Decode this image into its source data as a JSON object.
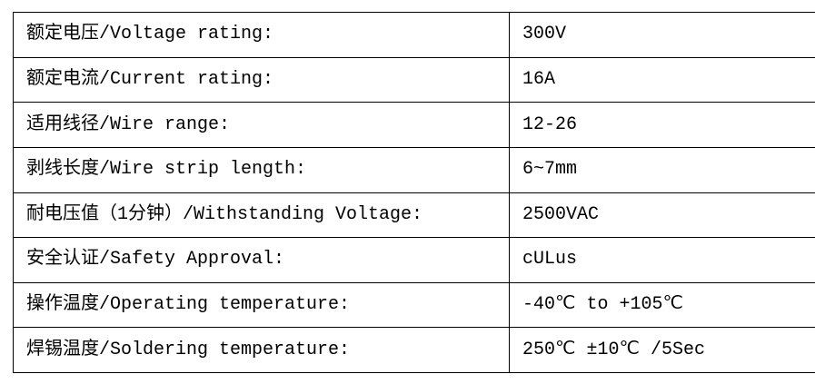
{
  "table": {
    "border_color": "#000000",
    "background_color": "#ffffff",
    "text_color": "#000000",
    "rows": [
      {
        "label": "额定电压/Voltage rating:",
        "value": "300V"
      },
      {
        "label": "额定电流/Current rating:",
        "value": "16A"
      },
      {
        "label": "适用线径/Wire range:",
        "value": "12-26"
      },
      {
        "label": "剥线长度/Wire strip length:",
        "value": "6~7mm"
      },
      {
        "label": "耐电压值（1分钟）/Withstanding Voltage:",
        "value": "2500VAC"
      },
      {
        "label": "安全认证/Safety Approval:",
        "value": "cULus"
      },
      {
        "label": "操作温度/Operating temperature:",
        "value": "-40℃ to +105℃"
      },
      {
        "label": "焊锡温度/Soldering temperature:",
        "value": "250℃ ±10℃ /5Sec"
      }
    ]
  }
}
